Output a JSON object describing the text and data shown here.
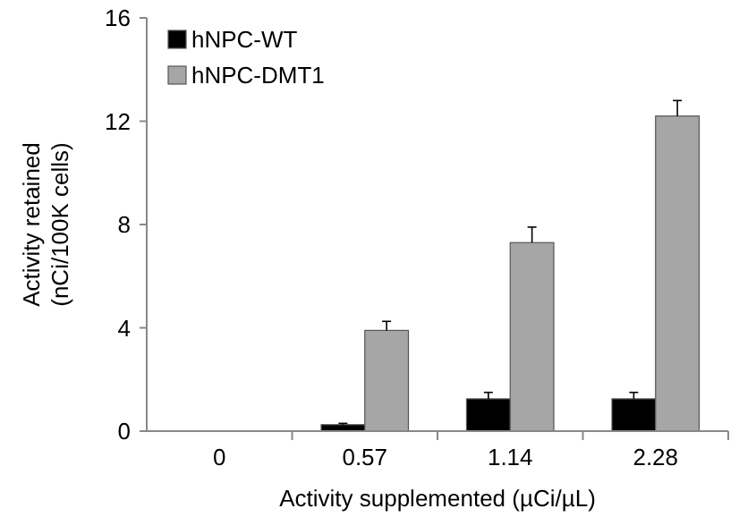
{
  "chart_data": {
    "type": "bar",
    "xlabel": "Activity supplemented (µCi/µL)",
    "ylabel": "Activity retained\n(nCi/100K cells)",
    "categories": [
      "0",
      "0.57",
      "1.14",
      "2.28"
    ],
    "series": [
      {
        "name": "hNPC-WT",
        "color": "#000000",
        "values": [
          0,
          0.25,
          1.25,
          1.25
        ],
        "errors": [
          null,
          0.05,
          0.25,
          0.25
        ]
      },
      {
        "name": "hNPC-DMT1",
        "color": "#a6a6a6",
        "values": [
          0,
          3.9,
          7.3,
          12.2
        ],
        "errors": [
          null,
          0.35,
          0.6,
          0.6
        ]
      }
    ],
    "ylim": [
      0,
      16
    ],
    "yticks": [
      0,
      4,
      8,
      12,
      16
    ],
    "legend": "top left"
  }
}
